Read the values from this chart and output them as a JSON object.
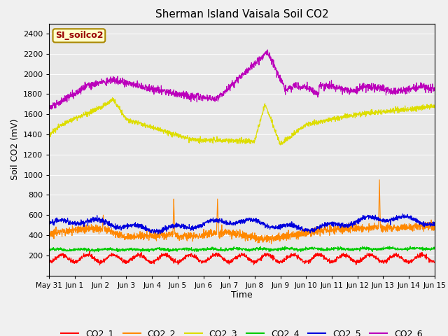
{
  "title": "Sherman Island Vaisala Soil CO2",
  "ylabel": "Soil CO2 (mV)",
  "xlabel": "Time",
  "legend_label": "SI_soilco2",
  "ylim": [
    0,
    2500
  ],
  "bg_color": "#e8e8e8",
  "fig_bg_color": "#f0f0f0",
  "xtick_labels": [
    "May 31",
    "Jun 1",
    "Jun 2",
    "Jun 3",
    "Jun 4",
    "Jun 5",
    "Jun 6",
    "Jun 7",
    "Jun 8",
    "Jun 9",
    "Jun 10",
    "Jun 11",
    "Jun 12",
    "Jun 13",
    "Jun 14",
    "Jun 15"
  ],
  "ytick_vals": [
    0,
    200,
    400,
    600,
    800,
    1000,
    1200,
    1400,
    1600,
    1800,
    2000,
    2200,
    2400
  ],
  "n_points": 2000,
  "days": 15,
  "colors": {
    "CO2_1": "#ff0000",
    "CO2_2": "#ff8800",
    "CO2_3": "#dddd00",
    "CO2_4": "#00cc00",
    "CO2_5": "#0000dd",
    "CO2_6": "#bb00bb"
  }
}
